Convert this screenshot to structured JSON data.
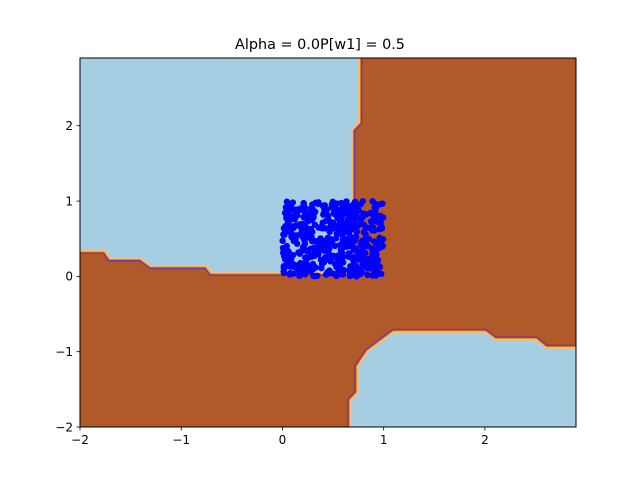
{
  "chart_data": {
    "type": "contour",
    "title": "Alpha = 0.0P[w1] = 0.5",
    "xlabel": "",
    "ylabel": "",
    "xlim": [
      -2,
      2.9
    ],
    "ylim": [
      -2,
      2.9
    ],
    "x_ticks": [
      -2,
      -1,
      0,
      1,
      2
    ],
    "y_ticks": [
      -2,
      -1,
      0,
      1,
      2
    ],
    "x_tick_labels": [
      "−2",
      "−1",
      "0",
      "1",
      "2"
    ],
    "y_tick_labels": [
      "−2",
      "−1",
      "0",
      "1",
      "2"
    ],
    "grid": false,
    "legend": "none",
    "colors": {
      "class_0": "#a6cee3",
      "class_1": "#b15928",
      "boundary_inner": "#6a3d9a",
      "boundary_mid": "#ff7f00",
      "boundary_outer": "#fdbf6f",
      "points": "#0000ff"
    },
    "regions": [
      {
        "name": "class_0_upper_left",
        "class": 0,
        "boundary": [
          [
            -2,
            0.35
          ],
          [
            -1.75,
            0.35
          ],
          [
            -1.7,
            0.25
          ],
          [
            -1.4,
            0.25
          ],
          [
            -1.3,
            0.15
          ],
          [
            -0.75,
            0.15
          ],
          [
            -0.7,
            0.06
          ],
          [
            0.68,
            0.06
          ],
          [
            0.68,
            1.95
          ],
          [
            0.75,
            2.05
          ],
          [
            0.75,
            2.9
          ],
          [
            -2,
            2.9
          ]
        ]
      },
      {
        "name": "class_0_lower_right",
        "class": 0,
        "boundary": [
          [
            0.68,
            -2
          ],
          [
            0.68,
            -1.65
          ],
          [
            0.75,
            -1.55
          ],
          [
            0.75,
            -1.2
          ],
          [
            0.85,
            -1.0
          ],
          [
            1.1,
            -0.75
          ],
          [
            2.0,
            -0.75
          ],
          [
            2.1,
            -0.85
          ],
          [
            2.5,
            -0.85
          ],
          [
            2.6,
            -0.96
          ],
          [
            2.9,
            -0.96
          ],
          [
            2.9,
            -2
          ]
        ]
      }
    ],
    "points": {
      "name": "",
      "x_range": [
        0,
        1
      ],
      "y_range": [
        0,
        1
      ],
      "count": 500
    }
  }
}
